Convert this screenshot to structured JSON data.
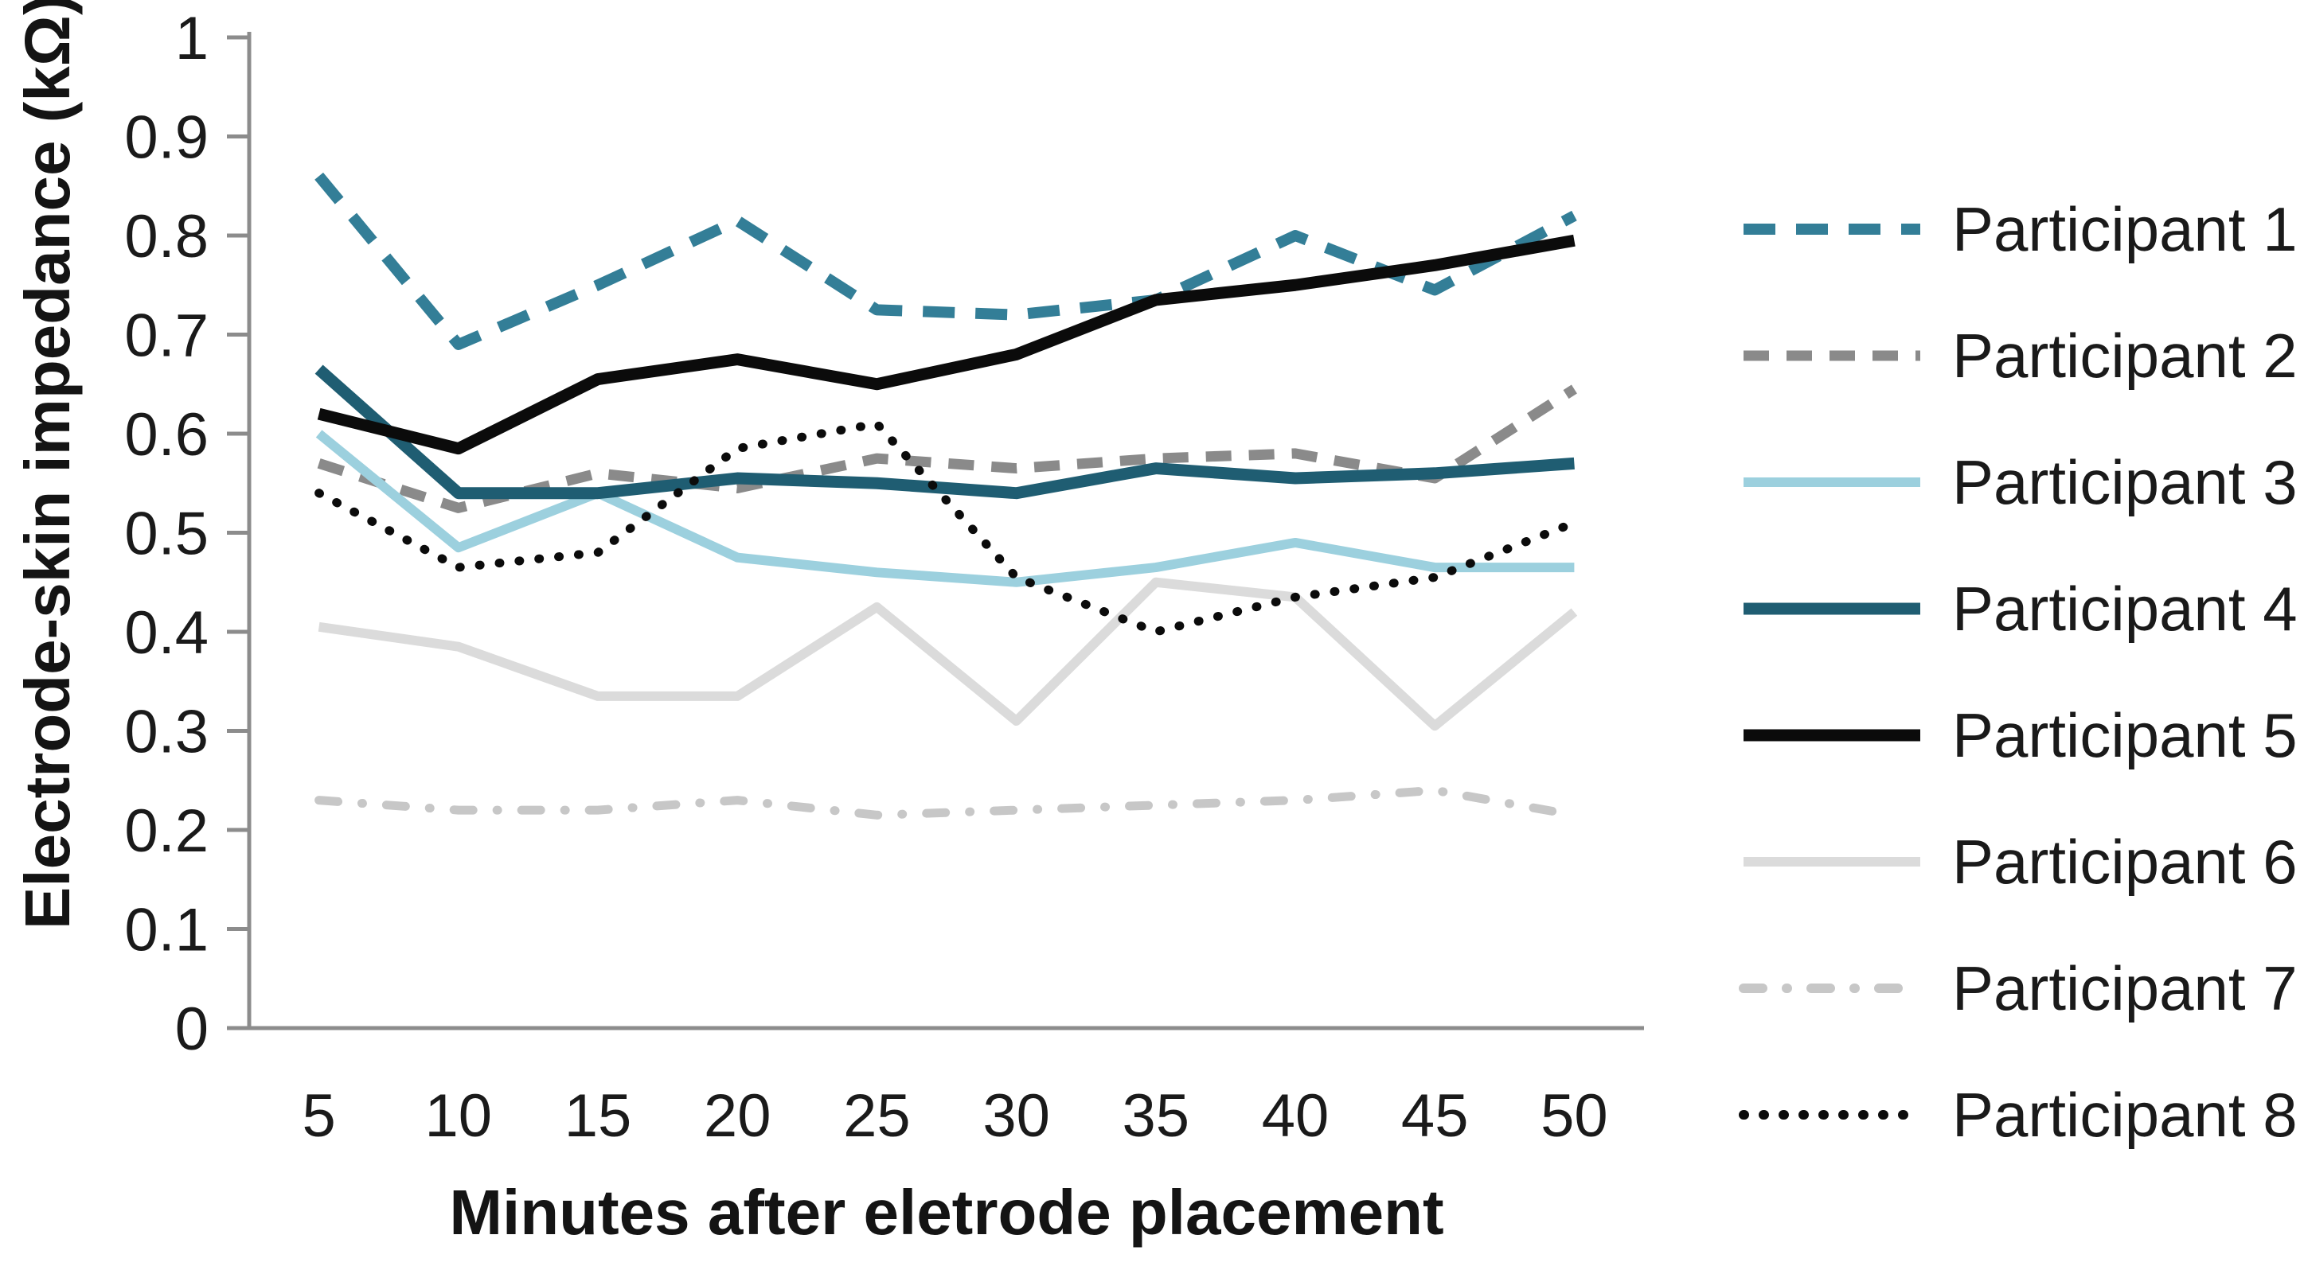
{
  "figure": {
    "background": "#ffffff",
    "axis_color": "#8c8c8c",
    "text_color": "#1a1a1a"
  },
  "chart_data": {
    "type": "line",
    "title": "",
    "xlabel": "Minutes after eletrode placement",
    "ylabel": "Electrode-skin impedance (kΩ)",
    "x": [
      5,
      10,
      15,
      20,
      25,
      30,
      35,
      40,
      45,
      50
    ],
    "xtick_labels": [
      "5",
      "10",
      "15",
      "20",
      "25",
      "30",
      "35",
      "40",
      "45",
      "50"
    ],
    "ylim": [
      0,
      1
    ],
    "ytick_labels": [
      "0",
      "0.1",
      "0.2",
      "0.3",
      "0.4",
      "0.5",
      "0.6",
      "0.7",
      "0.8",
      "0.9",
      "1"
    ],
    "grid": false,
    "legend_position": "right",
    "series": [
      {
        "name": "Participant 1",
        "color": "#337e97",
        "style": "long-dash",
        "width": 14,
        "values": [
          0.86,
          0.69,
          0.75,
          0.815,
          0.725,
          0.72,
          0.735,
          0.8,
          0.745,
          0.82
        ]
      },
      {
        "name": "Participant 2",
        "color": "#8a8a8a",
        "style": "dash",
        "width": 13,
        "values": [
          0.57,
          0.525,
          0.56,
          0.545,
          0.575,
          0.565,
          0.575,
          0.58,
          0.555,
          0.645
        ]
      },
      {
        "name": "Participant 3",
        "color": "#9cd0de",
        "style": "solid",
        "width": 12,
        "values": [
          0.6,
          0.485,
          0.54,
          0.475,
          0.46,
          0.45,
          0.465,
          0.49,
          0.465,
          0.465
        ]
      },
      {
        "name": "Participant 4",
        "color": "#1f5d72",
        "style": "solid",
        "width": 15,
        "values": [
          0.665,
          0.54,
          0.54,
          0.555,
          0.55,
          0.54,
          0.565,
          0.555,
          0.56,
          0.57
        ]
      },
      {
        "name": "Participant 5",
        "color": "#0b0b0b",
        "style": "solid",
        "width": 15,
        "values": [
          0.62,
          0.585,
          0.655,
          0.675,
          0.65,
          0.68,
          0.735,
          0.75,
          0.77,
          0.795
        ]
      },
      {
        "name": "Participant 6",
        "color": "#dbdbdb",
        "style": "solid",
        "width": 12,
        "values": [
          0.405,
          0.385,
          0.335,
          0.335,
          0.425,
          0.31,
          0.45,
          0.435,
          0.305,
          0.42
        ]
      },
      {
        "name": "Participant 7",
        "color": "#c7c7c7",
        "style": "dash-dot",
        "width": 11,
        "values": [
          0.23,
          0.22,
          0.22,
          0.23,
          0.215,
          0.22,
          0.225,
          0.23,
          0.24,
          0.215
        ]
      },
      {
        "name": "Participant 8",
        "color": "#0b0b0b",
        "style": "dot",
        "width": 11,
        "values": [
          0.54,
          0.465,
          0.48,
          0.585,
          0.61,
          0.455,
          0.4,
          0.435,
          0.455,
          0.51
        ]
      }
    ]
  }
}
